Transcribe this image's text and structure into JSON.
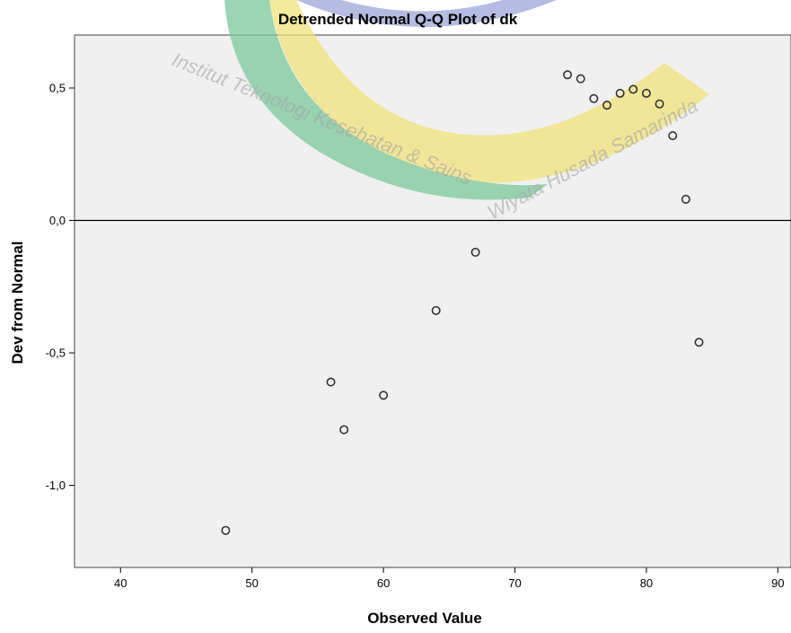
{
  "chart_data": {
    "type": "scatter",
    "title": "Detrended Normal Q-Q Plot of dk",
    "xlabel": "Observed Value",
    "ylabel": "Dev from Normal",
    "xlim": [
      36.5,
      91
    ],
    "ylim": [
      -1.31,
      0.7
    ],
    "xticks": [
      40,
      50,
      60,
      70,
      80,
      90
    ],
    "xtick_labels": [
      "40",
      "50",
      "60",
      "70",
      "80",
      "90"
    ],
    "yticks": [
      -1.0,
      -0.5,
      0.0,
      0.5
    ],
    "ytick_labels": [
      "-1,0",
      "-0,5",
      "0,0",
      "0,5"
    ],
    "reference_line": 0,
    "grid": false,
    "plot_background": "#f0f0f0",
    "marker_color": "#333333",
    "series": [
      {
        "points": [
          {
            "x": 48,
            "y": -1.17
          },
          {
            "x": 56,
            "y": -0.61
          },
          {
            "x": 57,
            "y": -0.79
          },
          {
            "x": 60,
            "y": -0.66
          },
          {
            "x": 64,
            "y": -0.34
          },
          {
            "x": 67,
            "y": -0.12
          },
          {
            "x": 74,
            "y": 0.55
          },
          {
            "x": 75,
            "y": 0.535
          },
          {
            "x": 76,
            "y": 0.46
          },
          {
            "x": 77,
            "y": 0.435
          },
          {
            "x": 78,
            "y": 0.48
          },
          {
            "x": 79,
            "y": 0.495
          },
          {
            "x": 80,
            "y": 0.48
          },
          {
            "x": 81,
            "y": 0.44
          },
          {
            "x": 82,
            "y": 0.32
          },
          {
            "x": 83,
            "y": 0.08
          },
          {
            "x": 84,
            "y": -0.46
          }
        ]
      }
    ]
  },
  "watermark": {
    "text_left": "Institut Teknologi Kesehatan & Sains",
    "text_right": "Wiyata Husada Samarinda",
    "colors": {
      "green": "#7cc89a",
      "yellow": "#f2e27a",
      "blue": "#9da6d8"
    }
  }
}
